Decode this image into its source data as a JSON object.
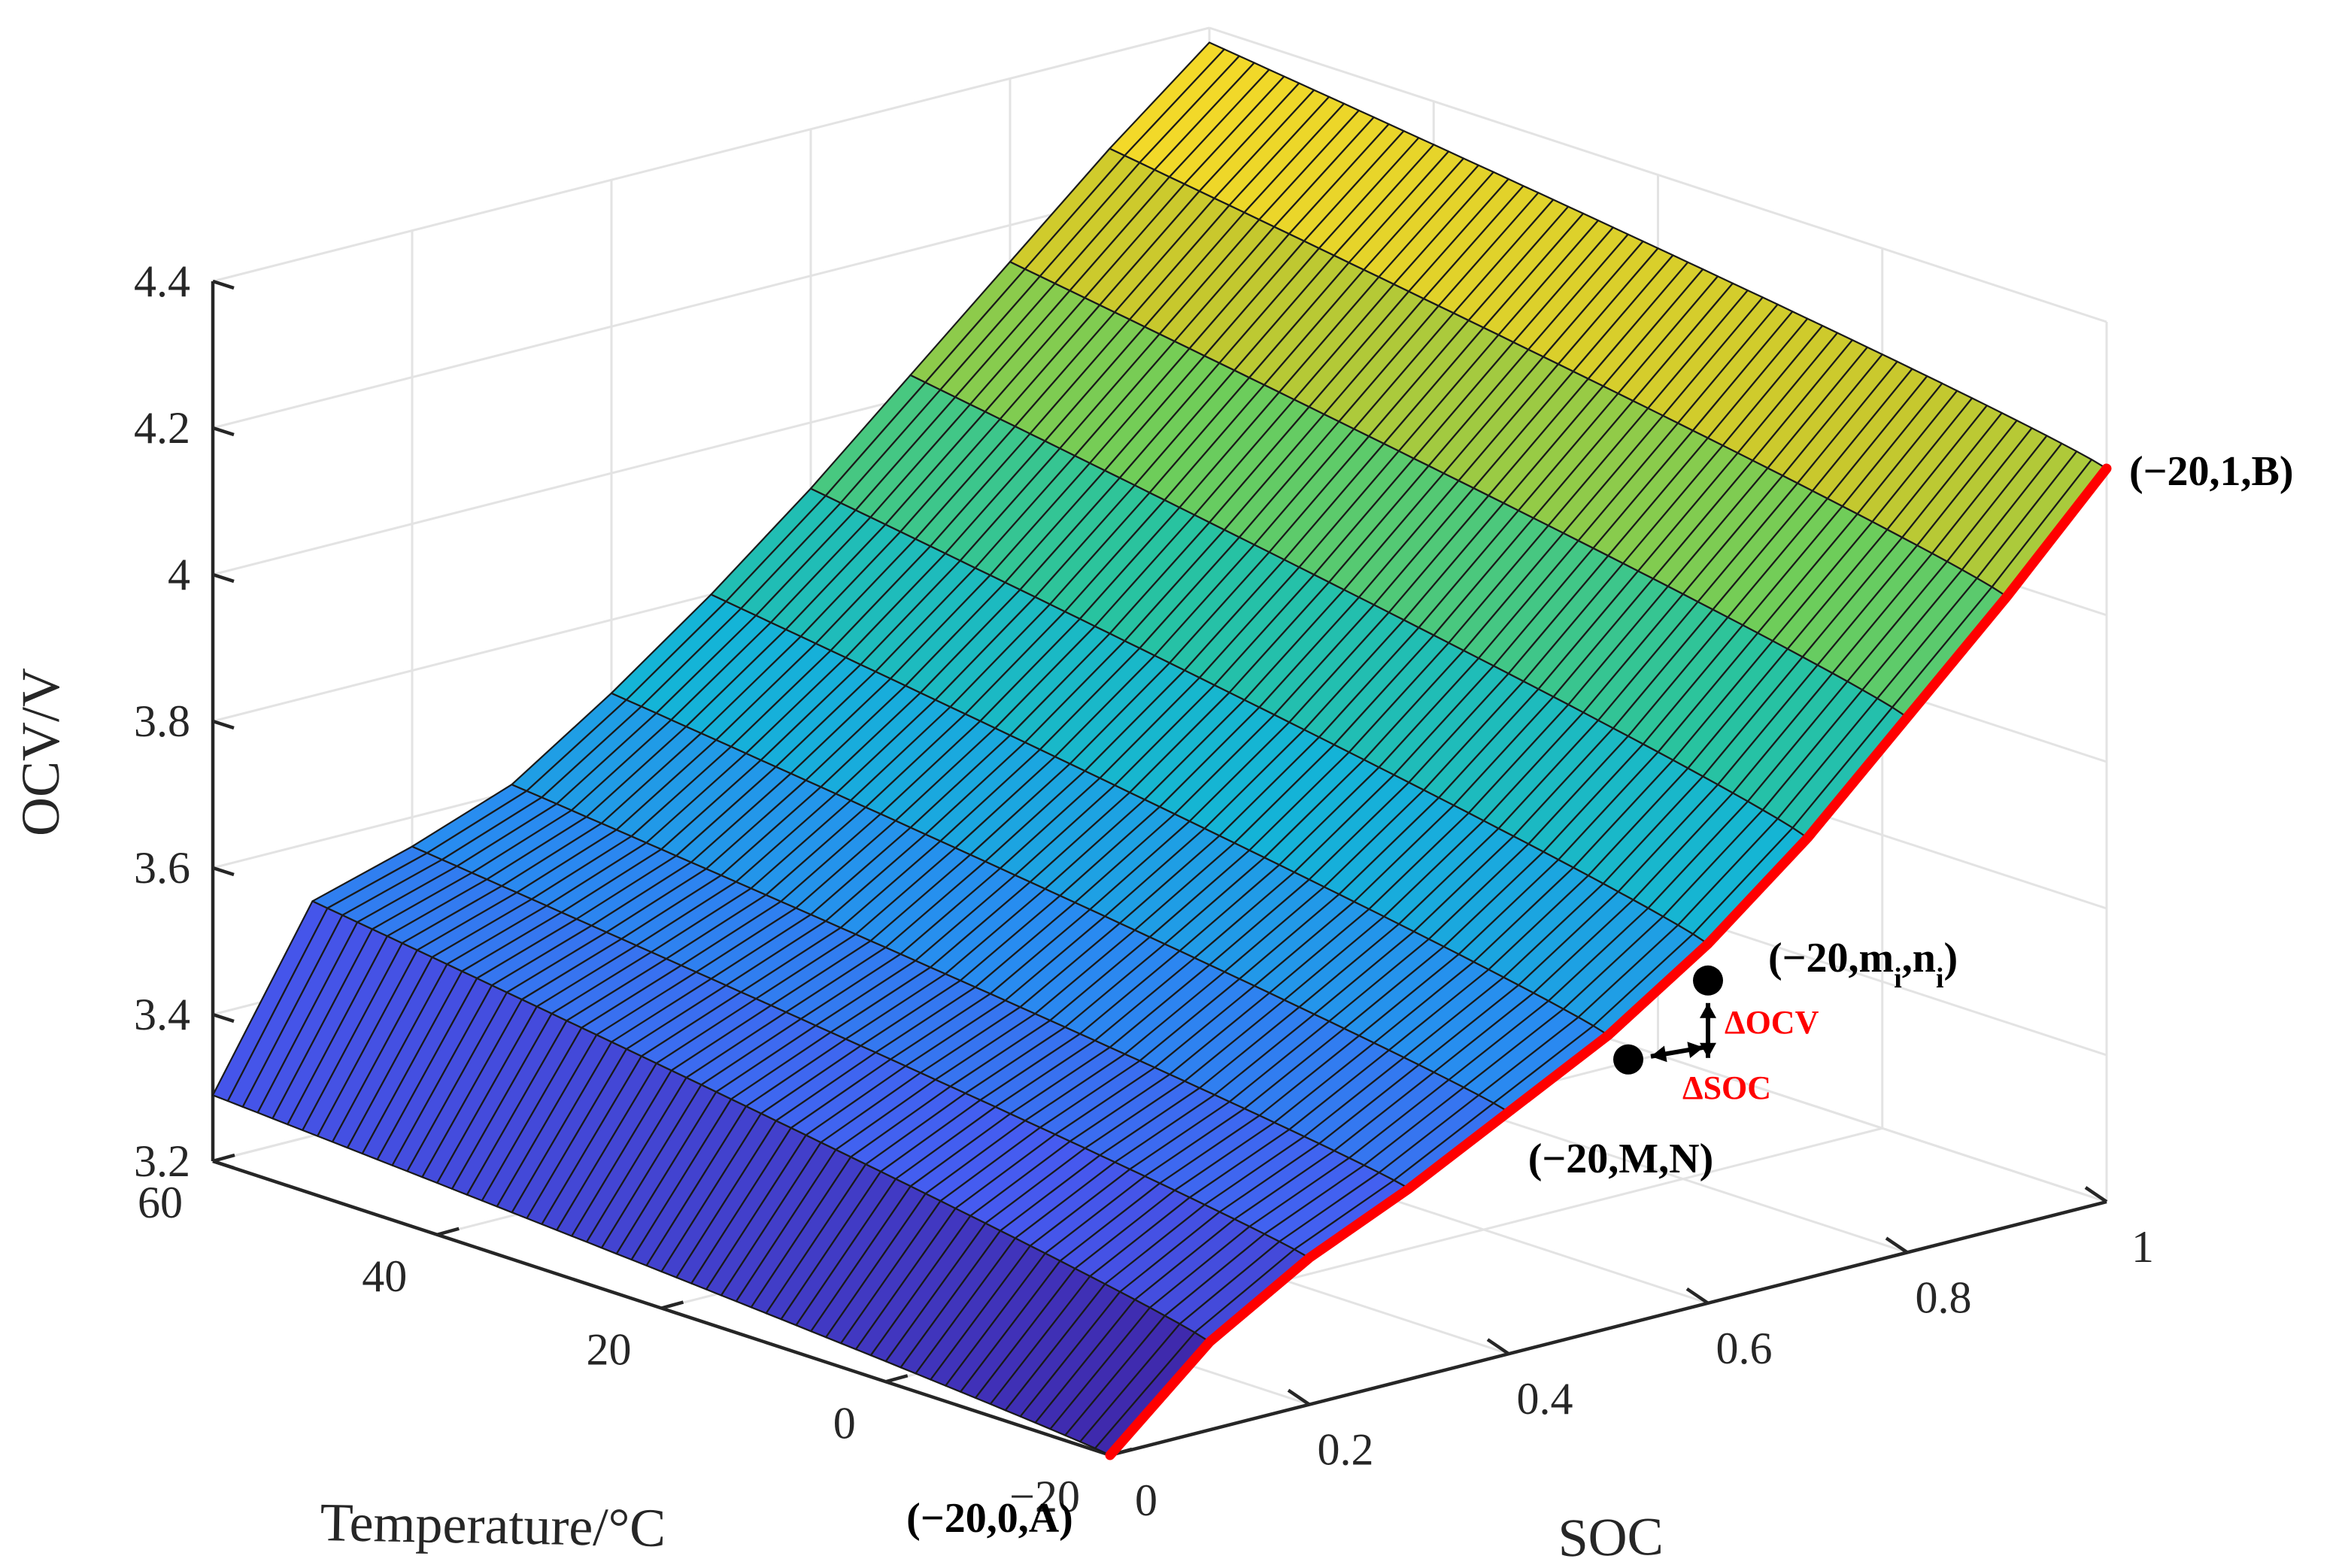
{
  "chart_data": {
    "type": "surface",
    "title": "",
    "xlabel": "SOC",
    "ylabel": "Temperature/°C",
    "zlabel": "OCV/V",
    "x": {
      "range": [
        0,
        1
      ],
      "ticks": [
        "0",
        "0.2",
        "0.4",
        "0.6",
        "0.8",
        "1"
      ]
    },
    "y": {
      "range": [
        -20,
        60
      ],
      "ticks": [
        "−20",
        "0",
        "20",
        "40",
        "60"
      ]
    },
    "z": {
      "range": [
        3.2,
        4.4
      ],
      "ticks": [
        "3.2",
        "3.4",
        "3.6",
        "3.8",
        "4",
        "4.2",
        "4.4"
      ]
    },
    "grid": true,
    "colormap": "parula",
    "surface": {
      "soc_levels": [
        0,
        0.1,
        0.2,
        0.3,
        0.4,
        0.5,
        0.6,
        0.7,
        0.8,
        0.9,
        1.0
      ],
      "ocv_at_minus20": [
        3.2,
        3.32,
        3.4,
        3.46,
        3.53,
        3.6,
        3.69,
        3.8,
        3.93,
        4.06,
        4.2
      ],
      "ocv_at_60": [
        3.29,
        3.52,
        3.56,
        3.61,
        3.7,
        3.8,
        3.91,
        4.03,
        4.15,
        4.27,
        4.38
      ],
      "temperature_steps": 60
    },
    "highlight_curve": {
      "temperature": -20,
      "color": "#ff0000"
    },
    "annotations": [
      {
        "label": "(−20,0,A)",
        "temperature": -20,
        "soc": 0,
        "ocv": 3.2
      },
      {
        "label": "(−20,1,B)",
        "temperature": -20,
        "soc": 1,
        "ocv": 4.2
      },
      {
        "label": "(−20,M,N)",
        "temperature": -20,
        "soc": 0.52,
        "ocv": 3.56
      },
      {
        "label": "(−20,m",
        "sub1": "i",
        "mid": ",n",
        "sub2": "i",
        "end": ")",
        "temperature": -20,
        "soc": 0.6,
        "ocv": 3.64
      }
    ],
    "delta_labels": {
      "docv": "ΔOCV",
      "dsoc": "ΔSOC"
    },
    "colors": {
      "axis": "#262626",
      "grid": "#e3e3e3",
      "mesh": "#1a1a1a",
      "highlight": "#ff0000"
    }
  }
}
